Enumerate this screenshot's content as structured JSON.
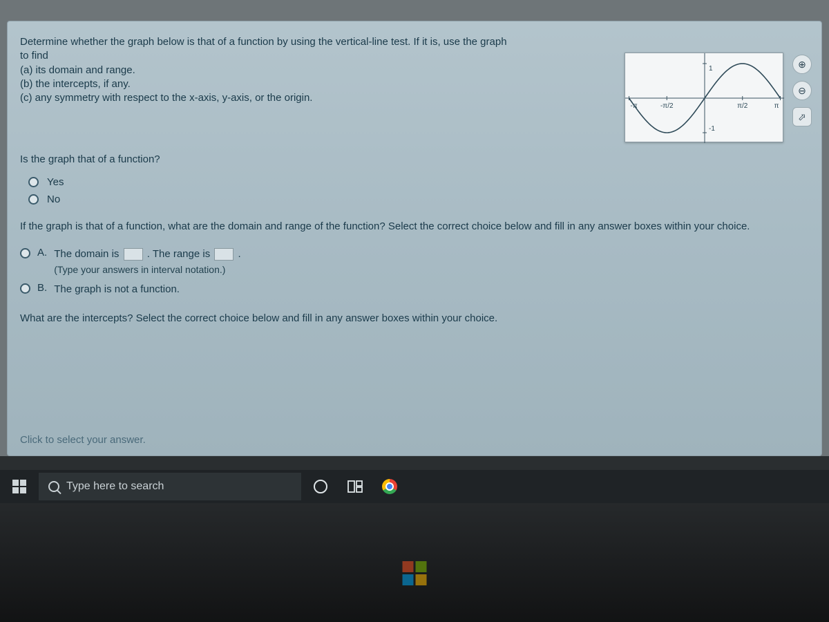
{
  "question": {
    "intro": "Determine whether the graph below is that of a function by using the vertical-line test.  If it is, use the graph to find",
    "parts": {
      "a": "(a) its domain and range.",
      "b": "(b) the intercepts, if any.",
      "c": "(c) any symmetry with respect to the x-axis, y-axis, or the origin."
    }
  },
  "graph": {
    "type": "line",
    "xlim": [
      -3.3,
      3.3
    ],
    "ylim": [
      -1.3,
      1.3
    ],
    "curve": "sine",
    "curve_color": "#2e4a58",
    "curve_width": 1.6,
    "axis_color": "#3a5260",
    "background_color": "#f4f6f7",
    "tick_font_size": 10,
    "tick_color": "#2e4a58",
    "x_ticks": [
      {
        "pos": -3.1416,
        "label": "-π"
      },
      {
        "pos": -1.5708,
        "label": "-π/2"
      },
      {
        "pos": 1.5708,
        "label": "π/2"
      },
      {
        "pos": 3.1416,
        "label": "π"
      }
    ],
    "y_ticks": [
      {
        "pos": 1,
        "label": "1"
      },
      {
        "pos": -1,
        "label": "-1"
      }
    ]
  },
  "q1": {
    "prompt": "Is the graph that of a function?",
    "options": {
      "yes": "Yes",
      "no": "No"
    }
  },
  "q2": {
    "prompt": "If the graph is that of a function, what are the domain and range of the function? Select the correct choice below and fill in any answer boxes within your choice.",
    "choiceA": {
      "label": "A.",
      "text1": "The domain is",
      "text2": ". The range is",
      "text3": ".",
      "hint": "(Type your answers in interval notation.)"
    },
    "choiceB": {
      "label": "B.",
      "text": "The graph is not a function."
    }
  },
  "q3": {
    "prompt": "What are the intercepts? Select the correct choice below and fill in any answer boxes within your choice."
  },
  "footer": "Click to select your answer.",
  "taskbar": {
    "search_placeholder": "Type here to search"
  },
  "tool_icons": {
    "zoom_in": "⊕",
    "zoom_out": "⊖",
    "popout": "⬀"
  }
}
